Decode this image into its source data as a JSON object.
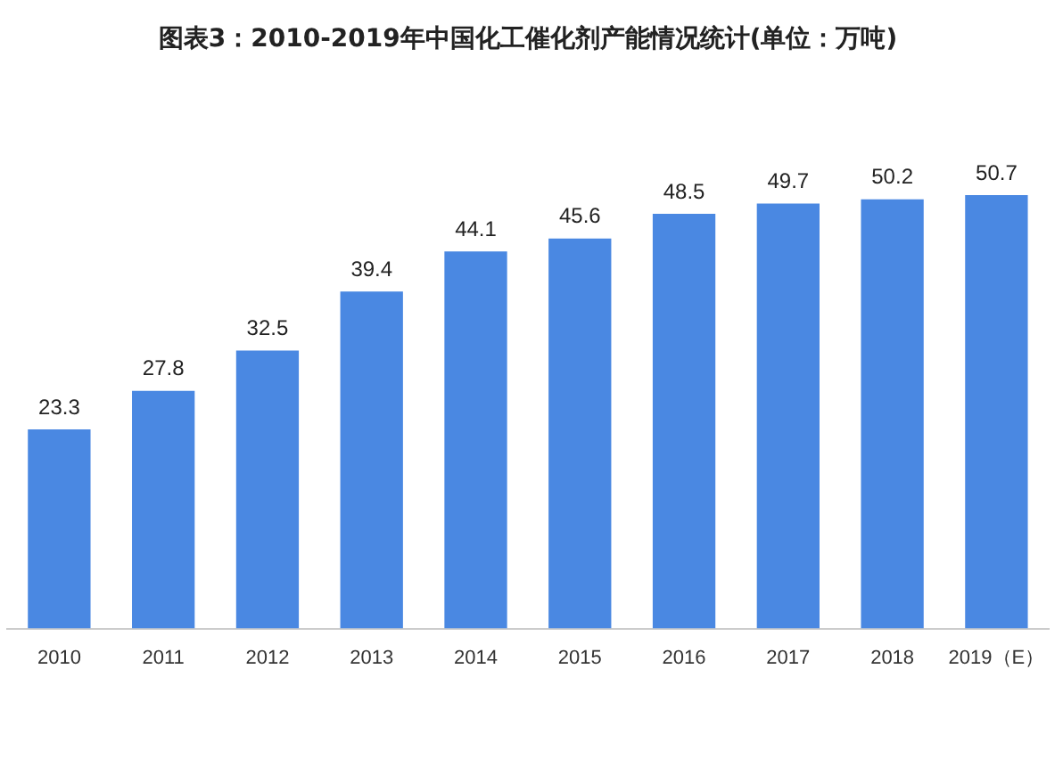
{
  "chart_data": {
    "type": "bar",
    "title": "图表3：2010-2019年中国化工催化剂产能情况统计(单位：万吨)",
    "categories": [
      "2010",
      "2011",
      "2012",
      "2013",
      "2014",
      "2015",
      "2016",
      "2017",
      "2018",
      "2019（E）"
    ],
    "values": [
      23.3,
      27.8,
      32.5,
      39.4,
      44.1,
      45.6,
      48.5,
      49.7,
      50.2,
      50.7
    ],
    "color": "#4a88e2",
    "data_labels": true,
    "grid": false,
    "legend": false,
    "tick_labels": "x"
  }
}
